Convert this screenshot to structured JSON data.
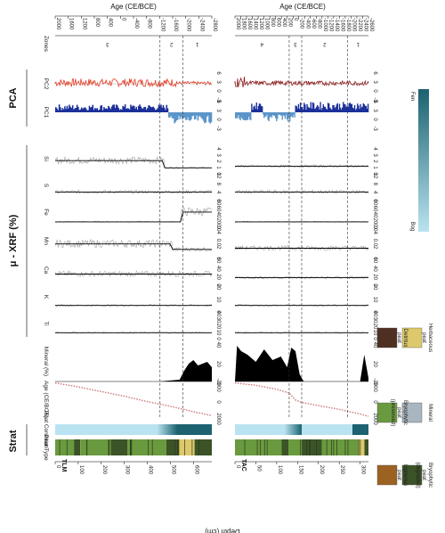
{
  "sections": {
    "pca": "PCA",
    "xrf": "μ - XRF (%)",
    "strat": "Strat"
  },
  "axes": {
    "age_title": "Age (CE/BCE)",
    "depth_title": "Depth (cm)"
  },
  "cores": [
    {
      "id": "TLM",
      "depth_ticks": [
        "0",
        "100",
        "200",
        "300",
        "400",
        "500",
        "600"
      ],
      "depth_range": [
        0,
        680
      ],
      "age_ticks": [
        "2000",
        "1600",
        "1200",
        "800",
        "400",
        "0",
        "-400",
        "-800",
        "-1200",
        "-1600",
        "-2000",
        "-2400",
        "-2800"
      ],
      "zone_labels": [
        "3",
        "2",
        "1"
      ],
      "zone_boundaries_depth": [
        455,
        555
      ]
    },
    {
      "id": "TAC",
      "depth_ticks": [
        "0",
        "50",
        "100",
        "150",
        "200",
        "250",
        "300"
      ],
      "depth_range": [
        0,
        320
      ],
      "age_ticks": [
        "2000",
        "1800",
        "1600",
        "1400",
        "1200",
        "1000",
        "800",
        "600",
        "400",
        "200",
        "0",
        "-200",
        "-400",
        "-600",
        "-800",
        "-1000",
        "-1200",
        "-1400",
        "-1600",
        "-1800",
        "-2000",
        "-2200",
        "-2400",
        "-2600"
      ],
      "zone_labels": [
        "4",
        "3",
        "2",
        "1"
      ],
      "zone_boundaries_depth": [
        130,
        160,
        270
      ]
    }
  ],
  "tracks": {
    "zones": "Zones",
    "pc2": "PC2",
    "pc2_ticks": [
      "-3",
      "0",
      "3",
      "6"
    ],
    "pc1": "PC1",
    "pc1_ticks": [
      "-3",
      "0",
      "3",
      "6"
    ],
    "si": "Si",
    "si_ticks": [
      "0",
      "1",
      "2",
      "3",
      "4"
    ],
    "s": "S",
    "s_ticks": [
      "0",
      "4",
      "8",
      "12"
    ],
    "fe": "Fe",
    "fe_ticks": [
      "0",
      "20",
      "40",
      "60",
      "80"
    ],
    "mn": "Mn",
    "mn_ticks": [
      "0",
      "0.02",
      "0.04"
    ],
    "ca": "Ca",
    "ca_ticks": [
      "0",
      "20",
      "40",
      "60"
    ],
    "k": "K",
    "k_ticks": [
      "0",
      "10",
      "20"
    ],
    "ti": "Ti",
    "ti_ticks": [
      "0",
      "10",
      "20",
      "30",
      "40"
    ],
    "mineral": "Mineral (%)",
    "mineral_ticks": [
      "0",
      "20",
      "40"
    ],
    "age": "Age (CE/BCE)",
    "age_ticks": [
      "2000",
      "0",
      "-2000"
    ],
    "peat_condition": "Peat Condition",
    "peat_type": "Peat Type"
  },
  "colorbar": {
    "top_label": "Fen",
    "bottom_label": "Bog",
    "top_color": "#1c6270",
    "bottom_color": "#b9e3f0"
  },
  "legend": [
    {
      "label": "Herbaceous peat",
      "color": "#ddc96b"
    },
    {
      "label": "Mineral",
      "color": "#a9b6bf"
    },
    {
      "label": "Bryophytic peat (degraded)",
      "color": "#3b5327"
    },
    {
      "label": "Detritus peat",
      "color": "#4e2f22"
    },
    {
      "label": "Bryophytic peat (preserved)",
      "color": "#6a9a3f"
    },
    {
      "label": "Ligneous peat",
      "color": "#9b6221"
    }
  ],
  "colors": {
    "pc2": "#e8381f",
    "pc2_tac": "#8e1515",
    "pc1": "#1b2f9a",
    "pc1_neg": "#5b94c8",
    "ageline": "#c87878"
  },
  "chart_data": [
    {
      "type": "line",
      "core": "TLM",
      "x_label": "Depth (cm)",
      "xlim": [
        0,
        680
      ],
      "zone_boundaries_depth": [
        455,
        555
      ],
      "mineral_percent": {
        "x": [
          0,
          450,
          540,
          560,
          580,
          600,
          620,
          640,
          660,
          680
        ],
        "values": [
          0,
          0,
          2,
          12,
          20,
          24,
          18,
          20,
          22,
          16
        ]
      },
      "age_model": {
        "x": [
          0,
          100,
          200,
          300,
          400,
          500,
          600,
          680
        ],
        "values": [
          2000,
          1500,
          900,
          300,
          -400,
          -1000,
          -1700,
          -2200
        ]
      }
    },
    {
      "type": "line",
      "core": "TAC",
      "x_label": "Depth (cm)",
      "xlim": [
        0,
        320
      ],
      "zone_boundaries_depth": [
        130,
        160,
        270
      ],
      "mineral_percent": {
        "x": [
          0,
          5,
          15,
          30,
          50,
          70,
          90,
          110,
          125,
          135,
          145,
          155,
          165,
          200,
          250,
          300,
          310,
          320
        ],
        "values": [
          0,
          40,
          34,
          30,
          22,
          36,
          24,
          28,
          16,
          38,
          34,
          8,
          0,
          0,
          0,
          0,
          30,
          4
        ]
      },
      "age_model": {
        "x": [
          0,
          50,
          100,
          130,
          145,
          160,
          200,
          250,
          300,
          320
        ],
        "values": [
          2000,
          1700,
          1200,
          700,
          -200,
          -500,
          -900,
          -1400,
          -2000,
          -2300
        ]
      }
    }
  ]
}
